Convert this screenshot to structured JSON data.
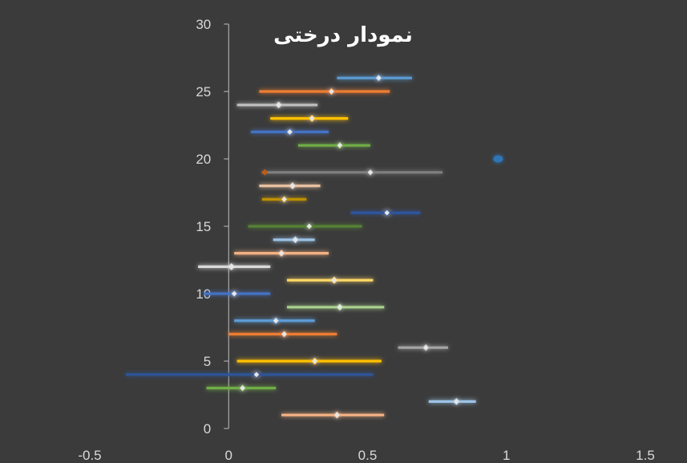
{
  "chart_data": {
    "type": "scatter",
    "title": "نمودار درختی",
    "xlabel": "",
    "ylabel": "",
    "xlim": [
      -0.5,
      1.5
    ],
    "ylim": [
      0,
      30
    ],
    "xticks": [
      -0.5,
      0,
      0.5,
      1,
      1.5
    ],
    "yticks": [
      0,
      5,
      10,
      15,
      20,
      25,
      30
    ],
    "xtick_labels": [
      "-0.5",
      "0",
      "0.5",
      "1",
      "1.5"
    ],
    "ytick_labels": [
      "0",
      "5",
      "10",
      "15",
      "20",
      "25",
      "30"
    ],
    "grid": false,
    "legend": "none",
    "background": "#3b3b3b",
    "points": [
      {
        "y": 1,
        "x": 0.39,
        "low": 0.19,
        "high": 0.56,
        "color": "#f4b183"
      },
      {
        "y": 2,
        "x": 0.82,
        "low": 0.72,
        "high": 0.89,
        "color": "#9dc3e6"
      },
      {
        "y": 3,
        "x": 0.05,
        "low": -0.08,
        "high": 0.17,
        "color": "#70ad47"
      },
      {
        "y": 4,
        "x": 0.1,
        "low": -0.37,
        "high": 0.52,
        "color": "#2f5597"
      },
      {
        "y": 5,
        "x": 0.31,
        "low": 0.03,
        "high": 0.55,
        "color": "#ffc000"
      },
      {
        "y": 6,
        "x": 0.71,
        "low": 0.61,
        "high": 0.79,
        "color": "#a5a5a5"
      },
      {
        "y": 7,
        "x": 0.2,
        "low": 0.0,
        "high": 0.39,
        "color": "#ed7d31"
      },
      {
        "y": 8,
        "x": 0.17,
        "low": 0.02,
        "high": 0.31,
        "color": "#5b9bd5"
      },
      {
        "y": 9,
        "x": 0.4,
        "low": 0.21,
        "high": 0.56,
        "color": "#a9d18e"
      },
      {
        "y": 10,
        "x": 0.02,
        "low": -0.09,
        "high": 0.15,
        "color": "#4472c4"
      },
      {
        "y": 11,
        "x": 0.38,
        "low": 0.21,
        "high": 0.52,
        "color": "#ffd966"
      },
      {
        "y": 12,
        "x": 0.01,
        "low": -0.11,
        "high": 0.15,
        "color": "#d9d9d9"
      },
      {
        "y": 13,
        "x": 0.19,
        "low": 0.02,
        "high": 0.36,
        "color": "#f4b183"
      },
      {
        "y": 14,
        "x": 0.24,
        "low": 0.16,
        "high": 0.31,
        "color": "#9dc3e6"
      },
      {
        "y": 15,
        "x": 0.29,
        "low": 0.07,
        "high": 0.48,
        "color": "#548235"
      },
      {
        "y": 16,
        "x": 0.57,
        "low": 0.44,
        "high": 0.69,
        "color": "#2e54a1"
      },
      {
        "y": 17,
        "x": 0.2,
        "low": 0.12,
        "high": 0.28,
        "color": "#bf9000"
      },
      {
        "y": 18,
        "x": 0.23,
        "low": 0.11,
        "high": 0.33,
        "color": "#e7c0a0"
      },
      {
        "y": 19,
        "x": 0.51,
        "low": 0.12,
        "high": 0.77,
        "color": "#7f7f7f"
      },
      {
        "y": 20,
        "x": 0.97,
        "low": 0.97,
        "high": 0.97,
        "color": "#2e75b6"
      },
      {
        "y": 21,
        "x": 0.4,
        "low": 0.25,
        "high": 0.51,
        "color": "#70ad47"
      },
      {
        "y": 22,
        "x": 0.22,
        "low": 0.08,
        "high": 0.36,
        "color": "#4472c4"
      },
      {
        "y": 23,
        "x": 0.3,
        "low": 0.15,
        "high": 0.43,
        "color": "#ffc000"
      },
      {
        "y": 24,
        "x": 0.18,
        "low": 0.03,
        "high": 0.32,
        "color": "#bfbfbf"
      },
      {
        "y": 25,
        "x": 0.37,
        "low": 0.11,
        "high": 0.58,
        "color": "#ed7d31"
      },
      {
        "y": 26,
        "x": 0.54,
        "low": 0.39,
        "high": 0.66,
        "color": "#5b9bd5"
      }
    ],
    "extra_marks": [
      {
        "y": 19,
        "x": 0.13,
        "color": "#c55a11"
      }
    ]
  }
}
